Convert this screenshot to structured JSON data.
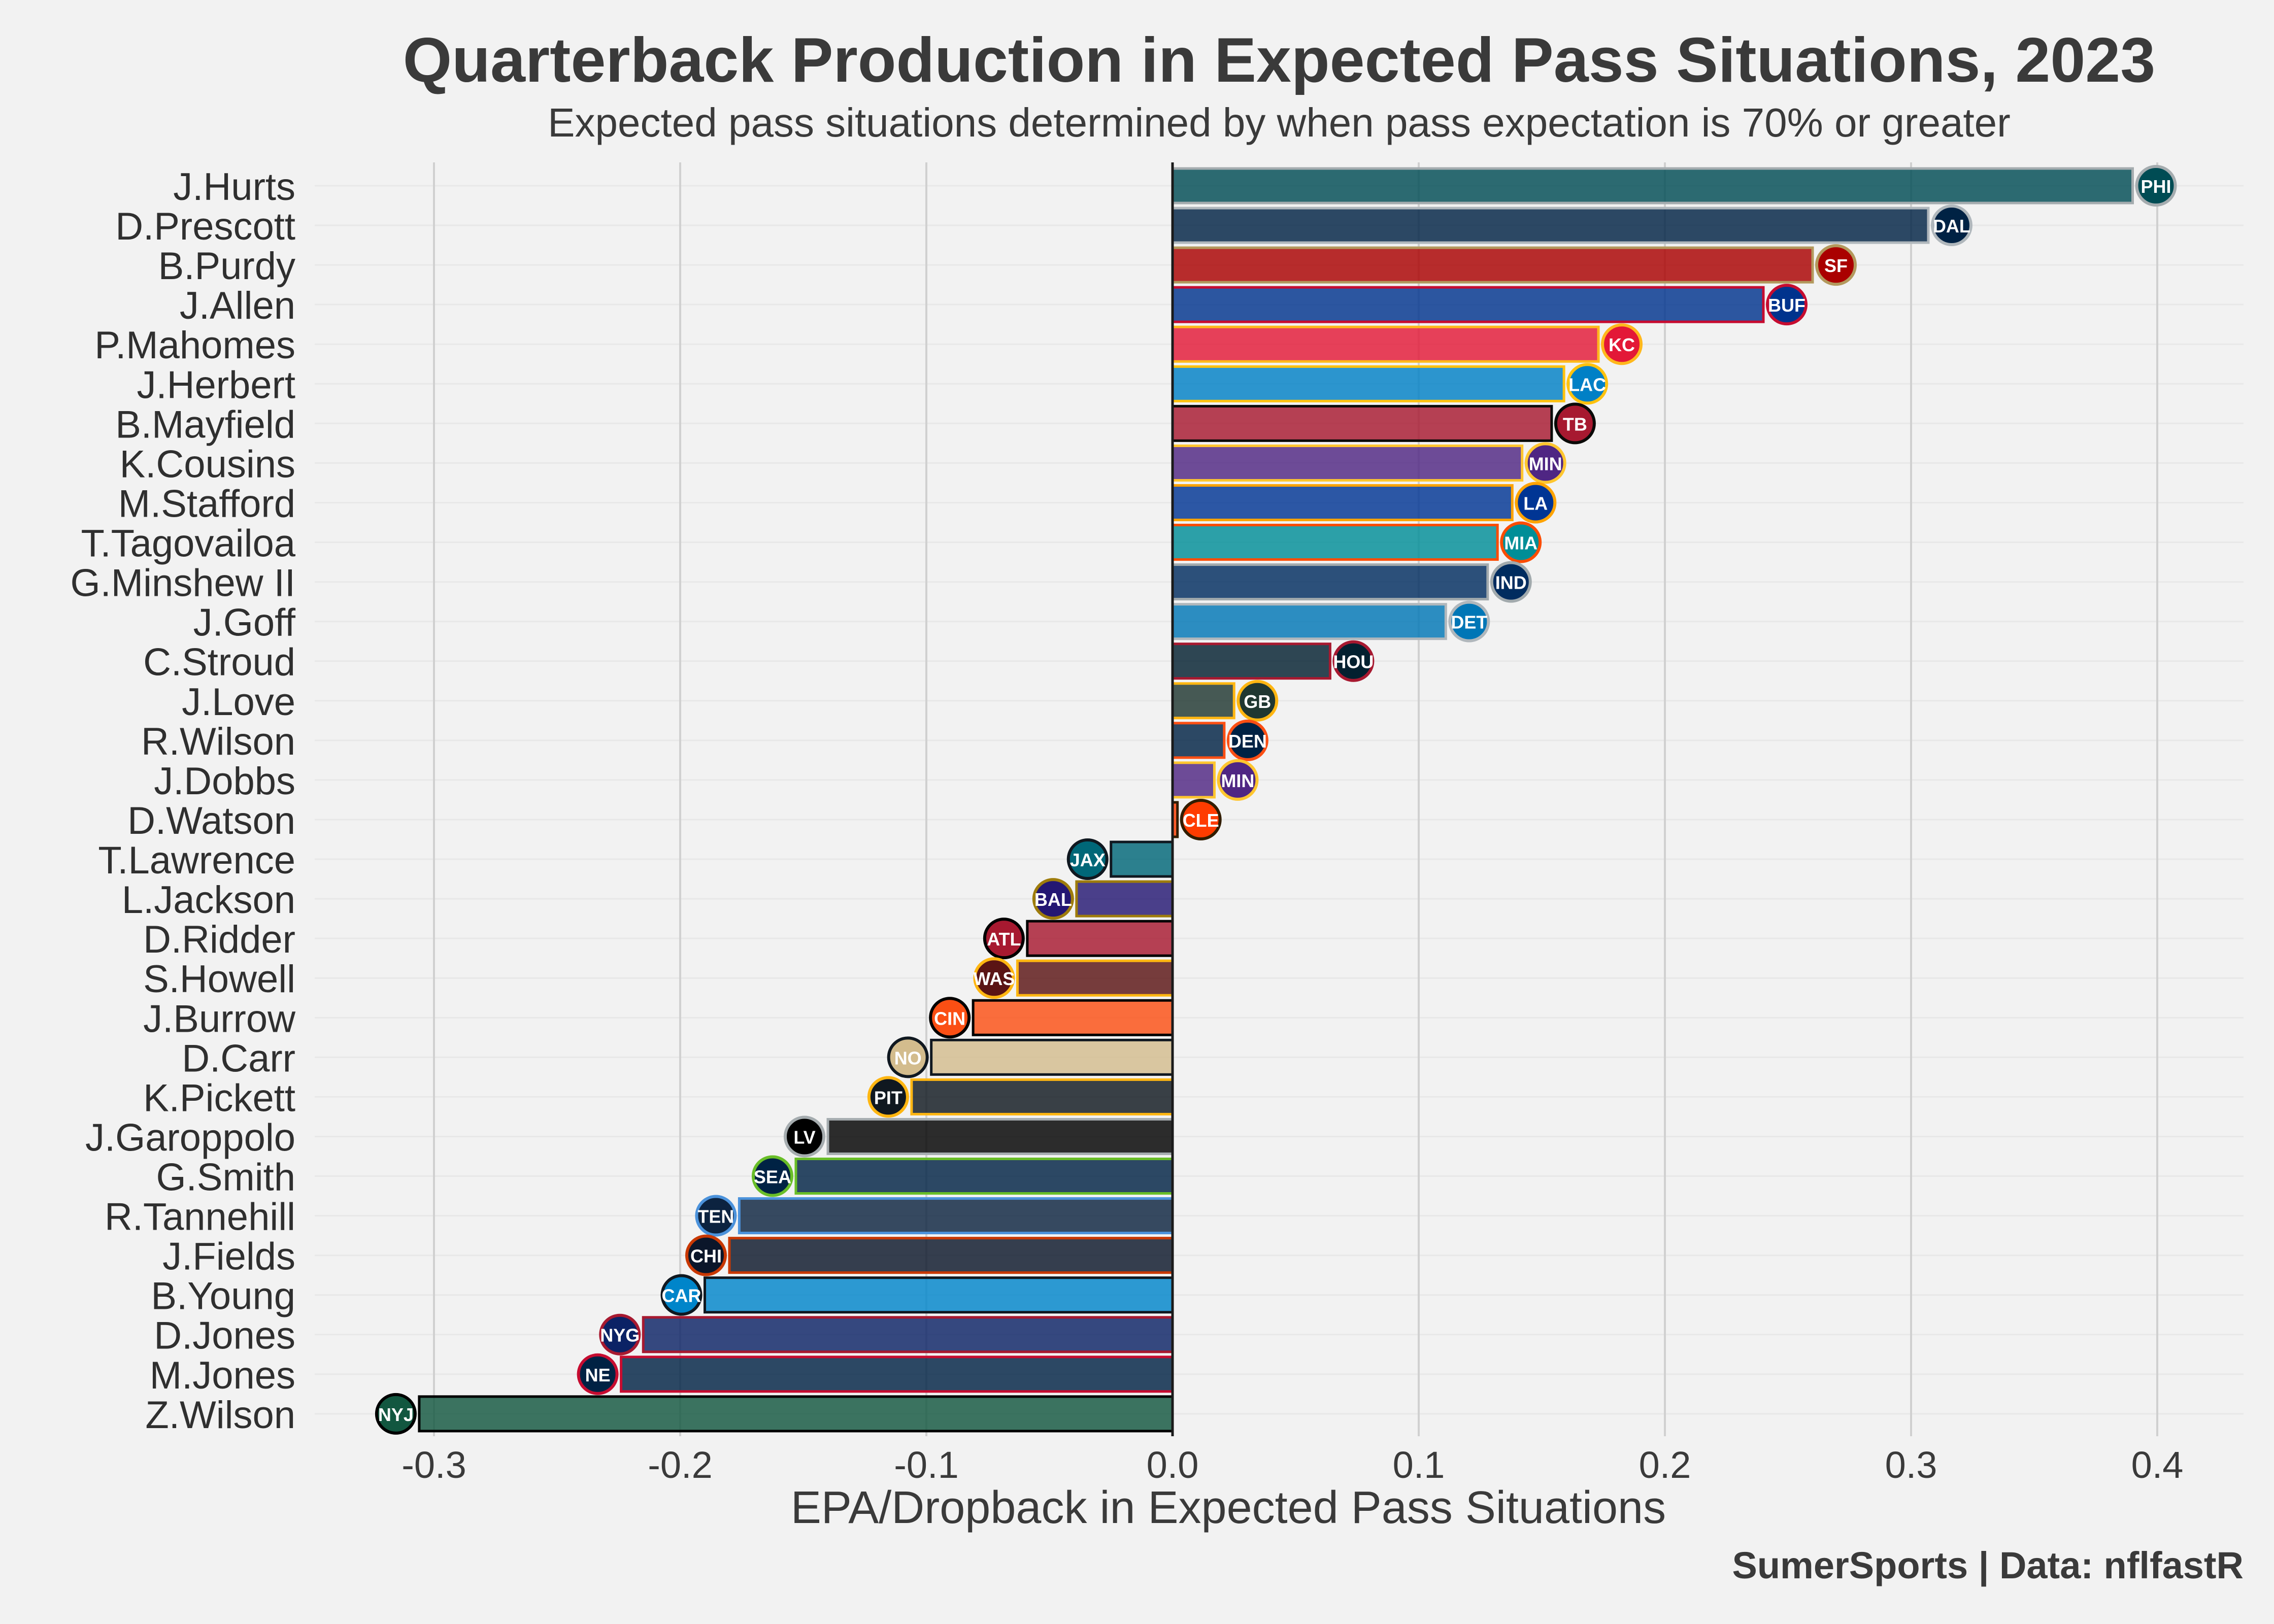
{
  "chart_data": {
    "type": "bar",
    "orientation": "horizontal",
    "title": "Quarterback Production in Expected Pass Situations, 2023",
    "subtitle": "Expected pass situations determined by when pass expectation is 70% or greater",
    "xlabel": "EPA/Dropback in Expected Pass Situations",
    "ylabel": "",
    "xlim": [
      -0.35,
      0.43
    ],
    "xticks": [
      -0.3,
      -0.2,
      -0.1,
      0.0,
      0.1,
      0.2,
      0.3,
      0.4
    ],
    "xtick_labels": [
      "-0.3",
      "-0.2",
      "-0.1",
      "0.0",
      "0.1",
      "0.2",
      "0.3",
      "0.4"
    ],
    "grid": true,
    "credit": "SumerSports | Data: nflfastR",
    "categories": [
      "J.Hurts",
      "D.Prescott",
      "B.Purdy",
      "J.Allen",
      "P.Mahomes",
      "J.Herbert",
      "B.Mayfield",
      "K.Cousins",
      "M.Stafford",
      "T.Tagovailoa",
      "G.Minshew II",
      "J.Goff",
      "C.Stroud",
      "J.Love",
      "R.Wilson",
      "J.Dobbs",
      "D.Watson",
      "T.Lawrence",
      "L.Jackson",
      "D.Ridder",
      "S.Howell",
      "J.Burrow",
      "D.Carr",
      "K.Pickett",
      "J.Garoppolo",
      "G.Smith",
      "R.Tannehill",
      "J.Fields",
      "B.Young",
      "D.Jones",
      "M.Jones",
      "Z.Wilson"
    ],
    "values": [
      0.39,
      0.307,
      0.26,
      0.24,
      0.173,
      0.159,
      0.154,
      0.142,
      0.138,
      0.132,
      0.128,
      0.111,
      0.064,
      0.025,
      0.021,
      0.017,
      0.002,
      -0.025,
      -0.039,
      -0.059,
      -0.063,
      -0.081,
      -0.098,
      -0.106,
      -0.14,
      -0.153,
      -0.176,
      -0.18,
      -0.19,
      -0.215,
      -0.224,
      -0.306
    ],
    "teams": [
      "PHI",
      "DAL",
      "SF",
      "BUF",
      "KC",
      "LAC",
      "TB",
      "MIN",
      "LA",
      "MIA",
      "IND",
      "DET",
      "HOU",
      "GB",
      "DEN",
      "MIN",
      "CLE",
      "JAX",
      "BAL",
      "ATL",
      "WAS",
      "CIN",
      "NO",
      "PIT",
      "LV",
      "SEA",
      "TEN",
      "CHI",
      "CAR",
      "NYG",
      "NE",
      "NYJ"
    ],
    "bar_colors": [
      "#004C54",
      "#002244",
      "#AA0000",
      "#00338D",
      "#E31837",
      "#0080C6",
      "#A71930",
      "#4F2683",
      "#003594",
      "#008E97",
      "#002C5F",
      "#0076B6",
      "#03202F",
      "#203731",
      "#002244",
      "#4F2683",
      "#FF3C00",
      "#006778",
      "#241773",
      "#A71930",
      "#5A1414",
      "#FB4F14",
      "#D3BC8D",
      "#101820",
      "#000000",
      "#002244",
      "#0C2340",
      "#0B162A",
      "#0085CA",
      "#0B2265",
      "#002244",
      "#125740"
    ],
    "edge_colors": [
      "#A5ACAF",
      "#B0B7BC",
      "#B3995D",
      "#C60C30",
      "#FFB81C",
      "#FFC20E",
      "#0A0A08",
      "#FFC62F",
      "#FFA300",
      "#FC4C02",
      "#A2AAAD",
      "#B0B7BC",
      "#A71930",
      "#FFB612",
      "#FB4F14",
      "#FFC62F",
      "#311D00",
      "#101820",
      "#9E7C0C",
      "#000000",
      "#FFB612",
      "#000000",
      "#101820",
      "#FFB612",
      "#A5ACAF",
      "#69BE28",
      "#4B92DB",
      "#C83803",
      "#101820",
      "#A71930",
      "#C60C30",
      "#000000"
    ],
    "logo_icons": [
      "eagle-icon",
      "star-icon",
      "sf-oval-icon",
      "buffalo-icon",
      "arrowhead-icon",
      "bolt-icon",
      "flag-icon",
      "viking-icon",
      "la-ram-icon",
      "dolphin-icon",
      "horseshoe-icon",
      "lion-icon",
      "bull-icon",
      "g-icon",
      "bronco-icon",
      "viking-icon",
      "helmet-icon",
      "jaguar-icon",
      "raven-icon",
      "falcon-icon",
      "w-icon",
      "stripes-icon",
      "fleur-icon",
      "steeler-icon",
      "raider-shield-icon",
      "seahawk-icon",
      "t-icon",
      "bear-icon",
      "panther-icon",
      "ny-icon",
      "patriot-icon",
      "jets-oval-icon"
    ]
  }
}
